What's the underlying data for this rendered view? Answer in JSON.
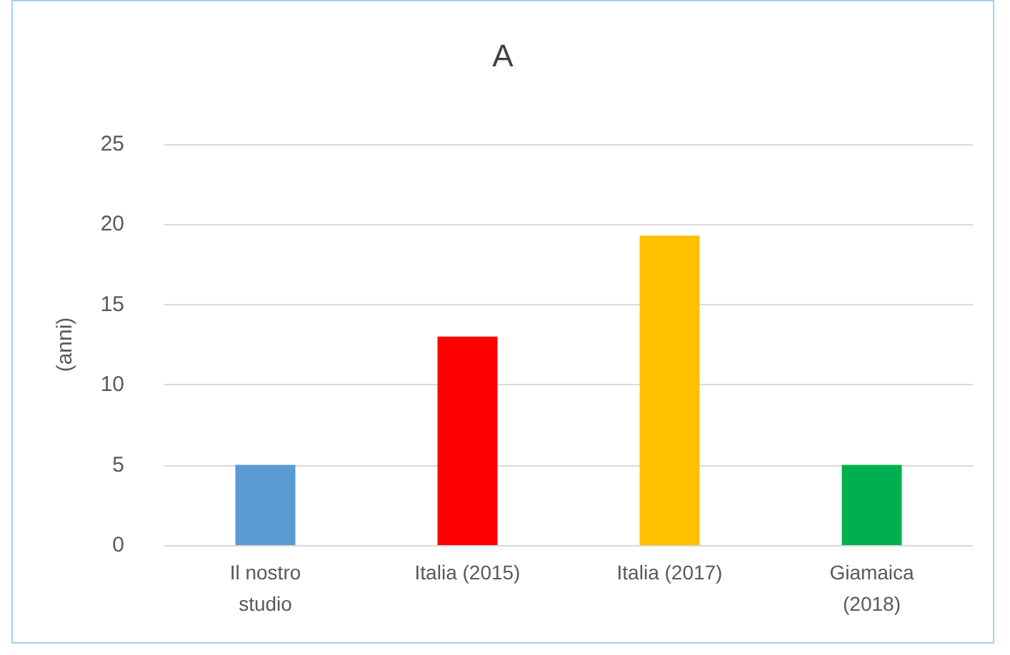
{
  "chart_data": {
    "type": "bar",
    "title": "A",
    "ylabel": "(anni)",
    "categories": [
      "Il nostro\nstudio",
      "Italia (2015)",
      "Italia (2017)",
      "Giamaica\n(2018)"
    ],
    "values": [
      5,
      13,
      19.3,
      5
    ],
    "colors": [
      "#5b9bd5",
      "#ff0000",
      "#ffc000",
      "#00b050"
    ],
    "ylim": [
      0,
      25
    ],
    "yticks": [
      0,
      5,
      10,
      15,
      20,
      25
    ],
    "grid": "y"
  }
}
